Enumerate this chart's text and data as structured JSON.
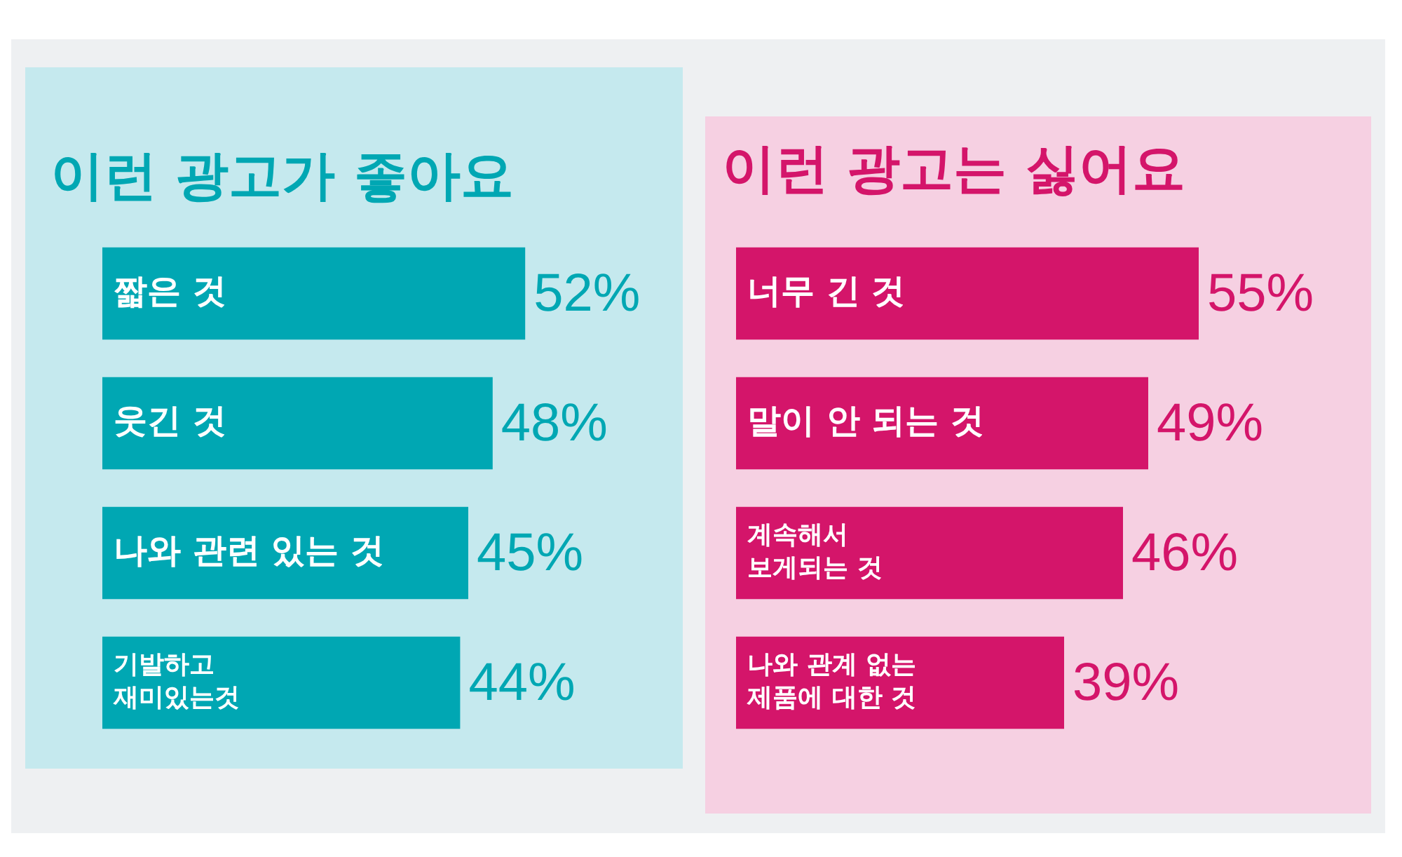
{
  "chart_data": [
    {
      "type": "bar",
      "orientation": "horizontal",
      "title": "이런 광고가 좋아요",
      "categories": [
        "짧은 것",
        "웃긴 것",
        "나와 관련 있는 것",
        "기발하고\n재미있는것"
      ],
      "values": [
        52,
        48,
        45,
        44
      ],
      "value_labels": [
        "52%",
        "48%",
        "45%",
        "44%"
      ],
      "color": "#00a7b3",
      "tick_labels": false
    },
    {
      "type": "bar",
      "orientation": "horizontal",
      "title": "이런 광고는 싫어요",
      "categories": [
        "너무 긴 것",
        "말이 안 되는 것",
        "계속해서\n보게되는 것",
        "나와 관계 없는\n제품에 대한 것"
      ],
      "values": [
        55,
        49,
        46,
        39
      ],
      "value_labels": [
        "55%",
        "49%",
        "46%",
        "39%"
      ],
      "color": "#d4156a",
      "tick_labels": false
    }
  ]
}
